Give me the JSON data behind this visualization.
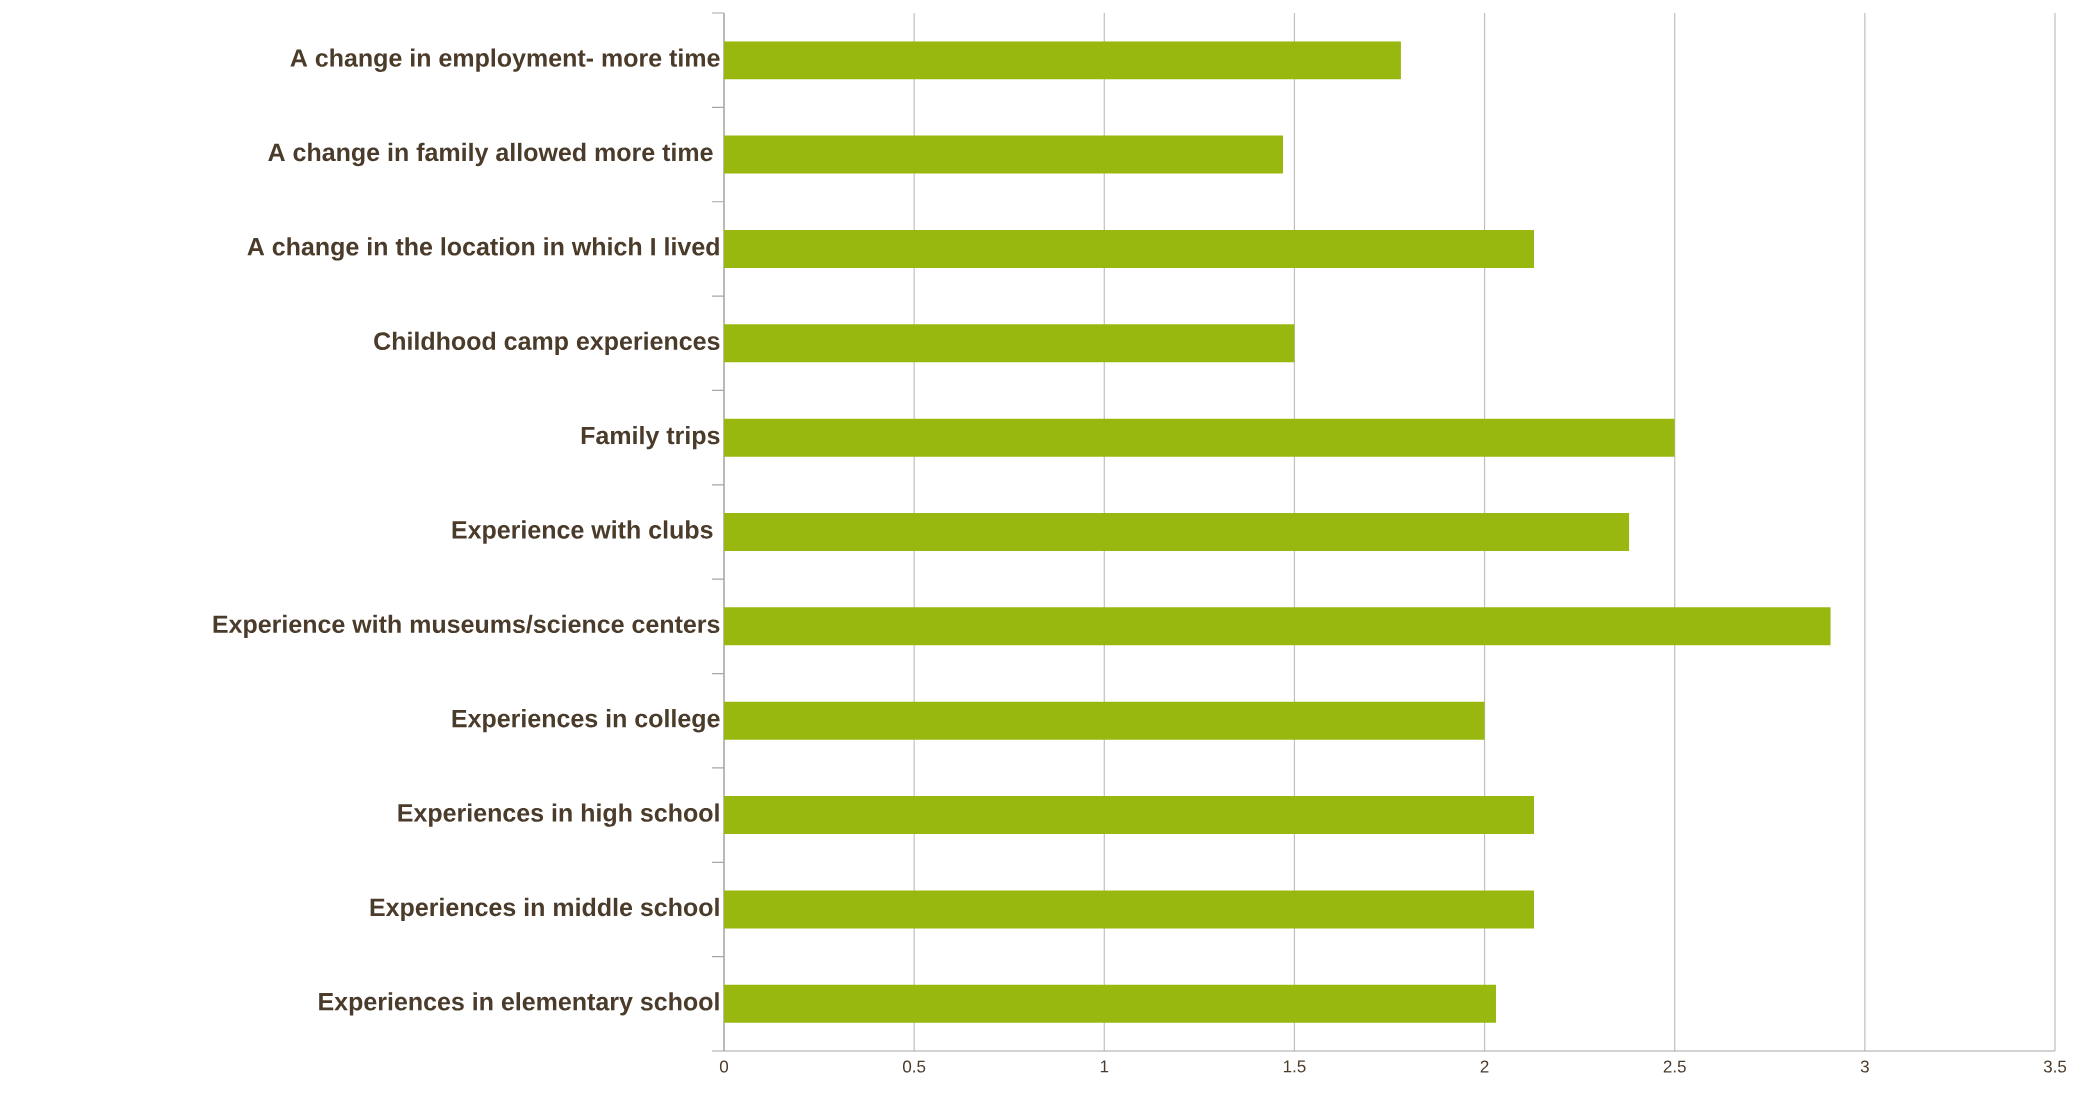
{
  "chart_data": {
    "type": "bar",
    "orientation": "horizontal",
    "categories": [
      "A change in employment- more time",
      "A change in family allowed more time ",
      "A change in the location in which I lived",
      "Childhood camp experiences",
      "Family trips",
      "Experience with clubs ",
      "Experience with museums/science centers",
      "Experiences in college",
      "Experiences in high school",
      "Experiences in middle school",
      "Experiences in elementary school"
    ],
    "values": [
      1.78,
      1.47,
      2.13,
      1.5,
      2.5,
      2.38,
      2.91,
      2.0,
      2.13,
      2.13,
      2.03
    ],
    "color": "#99b80f",
    "xlim": [
      0,
      3.5
    ],
    "xticks": [
      0,
      0.5,
      1,
      1.5,
      2,
      2.5,
      3,
      3.5
    ],
    "grid": "x"
  }
}
